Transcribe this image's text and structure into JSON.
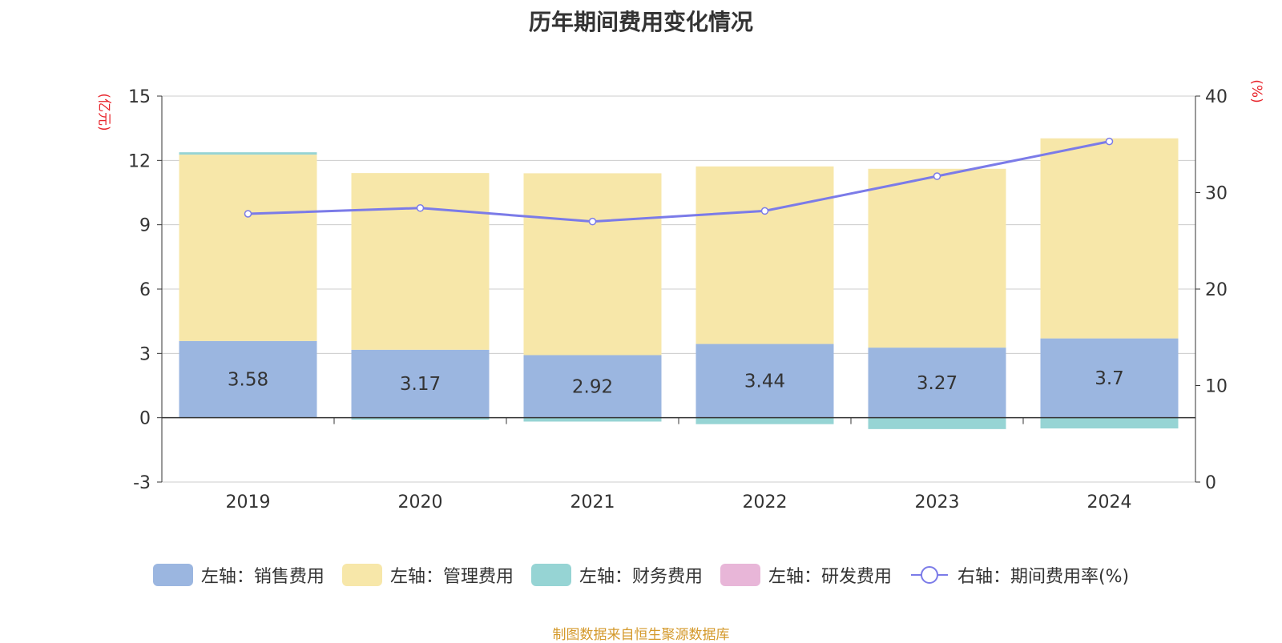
{
  "chart_data": {
    "type": "bar",
    "title": "历年期间费用变化情况",
    "left_unit": "(亿元)",
    "right_unit": "(%)",
    "categories": [
      "2019",
      "2020",
      "2021",
      "2022",
      "2023",
      "2024"
    ],
    "left_axis": {
      "min": -3,
      "max": 15,
      "ticks": [
        -3,
        0,
        3,
        6,
        9,
        12,
        15
      ]
    },
    "right_axis": {
      "min": 0,
      "max": 40,
      "ticks": [
        0,
        10,
        20,
        30,
        40
      ]
    },
    "grid": true,
    "series": [
      {
        "name": "左轴：销售费用",
        "type": "bar",
        "axis": "left",
        "color": "#9bb6e0",
        "values": [
          3.58,
          3.17,
          2.92,
          3.44,
          3.27,
          3.7
        ],
        "show_labels": true
      },
      {
        "name": "左轴：管理费用",
        "type": "bar",
        "axis": "left",
        "color": "#f7e7a9",
        "values": [
          8.69,
          8.24,
          8.48,
          8.28,
          8.34,
          9.33
        ],
        "show_labels": false
      },
      {
        "name": "左轴：财务费用",
        "type": "bar",
        "axis": "left",
        "color": "#96d4d4",
        "values": [
          0.11,
          -0.09,
          -0.18,
          -0.3,
          -0.53,
          -0.5
        ],
        "show_labels": false
      },
      {
        "name": "左轴：研发费用",
        "type": "bar",
        "axis": "left",
        "color": "#e8b6d8",
        "values": [
          0,
          0,
          0,
          0,
          0,
          0
        ],
        "show_labels": false
      },
      {
        "name": "右轴：期间费用率(%)",
        "type": "line",
        "axis": "right",
        "color": "#7b7be8",
        "values": [
          27.8,
          28.4,
          27.0,
          28.1,
          31.7,
          35.3
        ]
      }
    ],
    "legend_position": "bottom"
  },
  "source_text": "制图数据来自恒生聚源数据库"
}
